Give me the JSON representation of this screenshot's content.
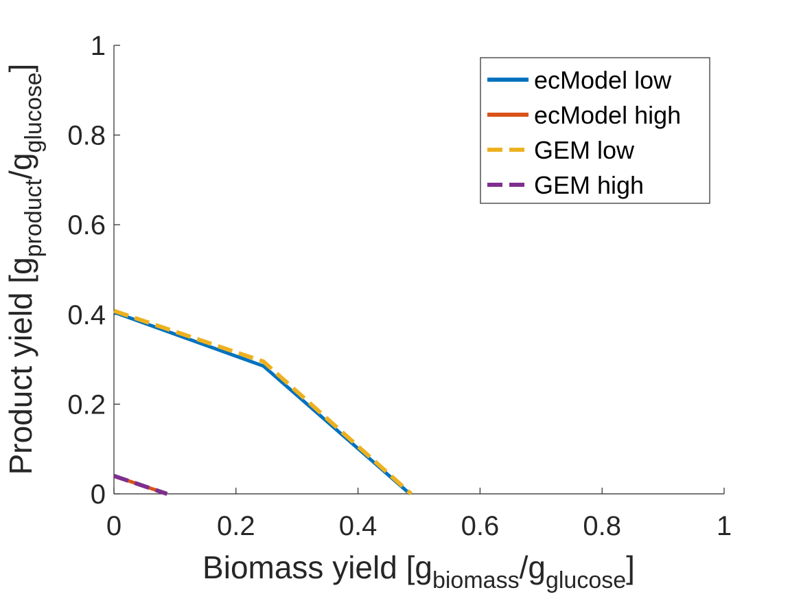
{
  "chart_data": {
    "type": "line",
    "xlabel": {
      "prefix": "Biomass yield [g",
      "sub1": "biomass",
      "middle": "/g",
      "sub2": "glucose",
      "suffix": "]"
    },
    "ylabel": {
      "prefix": "Product yield [g",
      "sub1": "product",
      "middle": "/g",
      "sub2": "glucose",
      "suffix": "]"
    },
    "xlim": [
      0,
      1
    ],
    "ylim": [
      0,
      1
    ],
    "x_ticks": [
      0,
      0.2,
      0.4,
      0.6,
      0.8,
      1
    ],
    "y_ticks": [
      0,
      0.2,
      0.4,
      0.6,
      0.8,
      1
    ],
    "x_tick_labels": [
      "0",
      "0.2",
      "0.4",
      "0.6",
      "0.8",
      "1"
    ],
    "y_tick_labels": [
      "0",
      "0.2",
      "0.4",
      "0.6",
      "0.8",
      "1"
    ],
    "grid": false,
    "legend_position": "top-right",
    "series": [
      {
        "name": "ecModel low",
        "color": "#0072BD",
        "style": "solid",
        "x": [
          0,
          0.245,
          0.485
        ],
        "y": [
          0.405,
          0.285,
          0
        ]
      },
      {
        "name": "ecModel high",
        "color": "#D95319",
        "style": "solid",
        "x": [
          0,
          0.087
        ],
        "y": [
          0.04,
          0
        ]
      },
      {
        "name": "GEM low",
        "color": "#EDB120",
        "style": "dashed",
        "x": [
          0,
          0.245,
          0.487
        ],
        "y": [
          0.408,
          0.295,
          0
        ]
      },
      {
        "name": "GEM high",
        "color": "#7E2F8E",
        "style": "dashed",
        "x": [
          0,
          0.087
        ],
        "y": [
          0.04,
          0
        ]
      }
    ]
  }
}
